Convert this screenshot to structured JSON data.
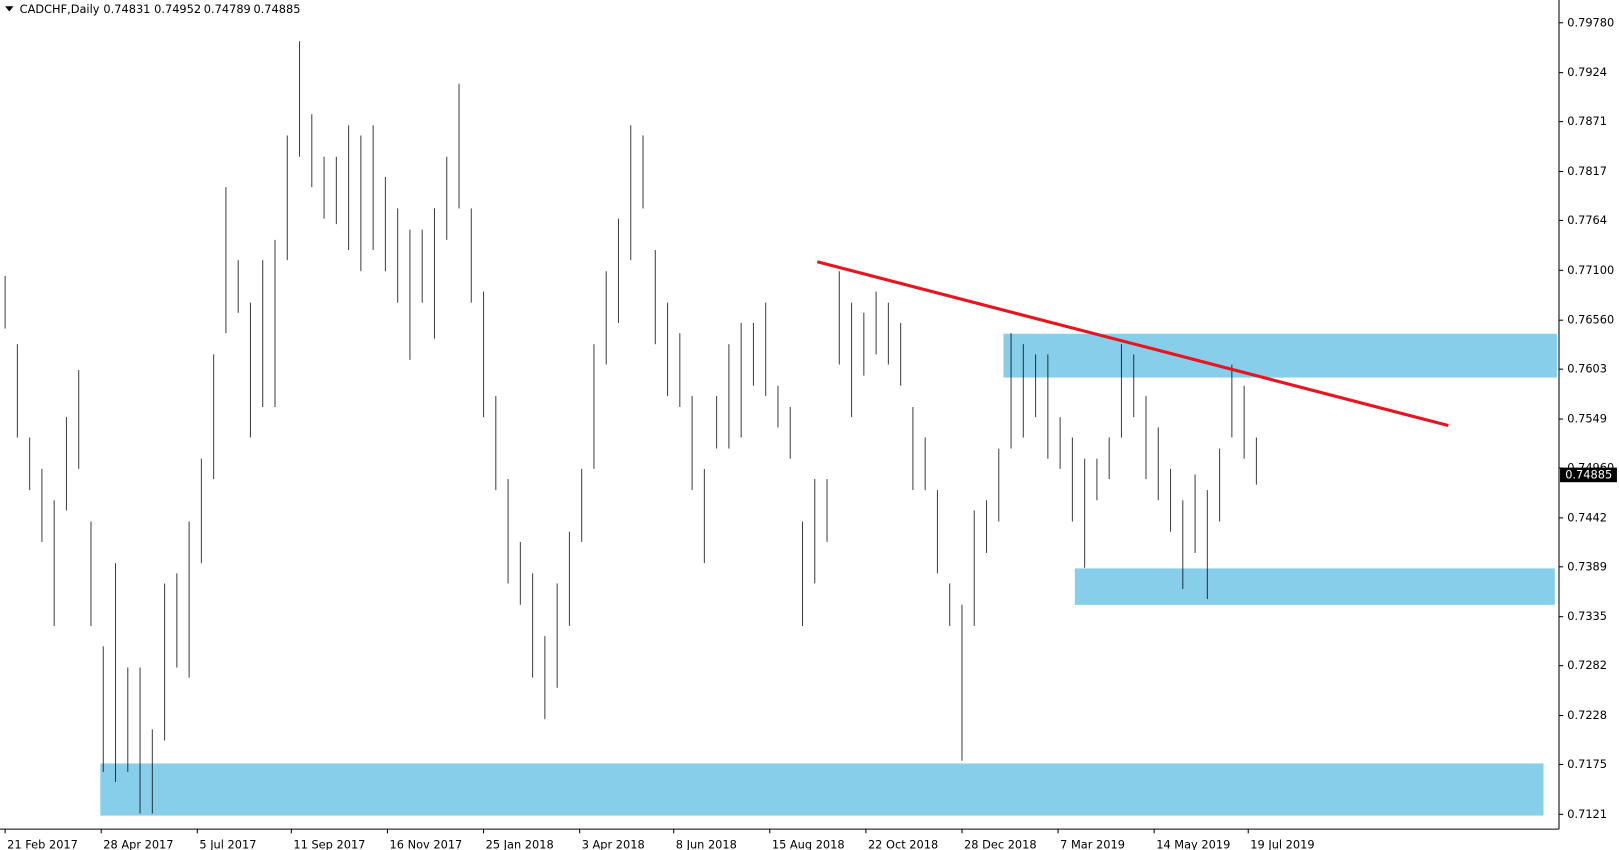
{
  "chart_data": {
    "type": "ohlc",
    "title": "CADCHF,Daily",
    "header_values": [
      0.74831,
      0.74952,
      0.74789,
      0.74885
    ],
    "last_price": 0.74885,
    "color": "#000000",
    "x": [
      0,
      6,
      12,
      18,
      24,
      30,
      36,
      42,
      48,
      54,
      60,
      66,
      72,
      78,
      84,
      90,
      96,
      102,
      108,
      114,
      120,
      126,
      132,
      138,
      144,
      150,
      156,
      162,
      168,
      174,
      180,
      186,
      192,
      198,
      204,
      210,
      216,
      222,
      228,
      234,
      240,
      246,
      252,
      258,
      264,
      270,
      276,
      282,
      288,
      294,
      300,
      306,
      312,
      318,
      324,
      330,
      336,
      342,
      348,
      354,
      360,
      366,
      372,
      378,
      384,
      390,
      396,
      402,
      408,
      414,
      420,
      426,
      432,
      438,
      444,
      450,
      456,
      462,
      468,
      474,
      480,
      486,
      492,
      498,
      504,
      510,
      516,
      522,
      528,
      534,
      540,
      546,
      552,
      558,
      564,
      570,
      576,
      582,
      588,
      594,
      600,
      606,
      612
    ],
    "high": [
      0.7704,
      0.763,
      0.7529,
      0.7495,
      0.7461,
      0.7551,
      0.7602,
      0.7438,
      0.7303,
      0.7393,
      0.728,
      0.728,
      0.7213,
      0.7371,
      0.7382,
      0.7438,
      0.7506,
      0.7619,
      0.78,
      0.7721,
      0.7675,
      0.7721,
      0.7743,
      0.7856,
      0.7958,
      0.7879,
      0.7833,
      0.7833,
      0.7867,
      0.7856,
      0.7867,
      0.7811,
      0.7777,
      0.7754,
      0.7754,
      0.7777,
      0.7833,
      0.7912,
      0.7777,
      0.7687,
      0.7574,
      0.7484,
      0.7416,
      0.7382,
      0.7314,
      0.7371,
      0.7427,
      0.7495,
      0.763,
      0.7709,
      0.7766,
      0.7867,
      0.7856,
      0.7732,
      0.7675,
      0.7642,
      0.7574,
      0.7495,
      0.7574,
      0.763,
      0.7653,
      0.7653,
      0.7675,
      0.7585,
      0.7562,
      0.7438,
      0.7484,
      0.7484,
      0.7709,
      0.7675,
      0.7664,
      0.7687,
      0.7675,
      0.7653,
      0.7562,
      0.7529,
      0.7472,
      0.7371,
      0.7348,
      0.745,
      0.7461,
      0.7517,
      0.7642,
      0.763,
      0.7619,
      0.7619,
      0.7551,
      0.7529,
      0.7506,
      0.7506,
      0.7529,
      0.763,
      0.7619,
      0.7574,
      0.754,
      0.7495,
      0.7461,
      0.7489,
      0.7472,
      0.7517,
      0.7608,
      0.7585,
      0.7529
    ],
    "low": [
      0.7647,
      0.7529,
      0.7472,
      0.7416,
      0.7325,
      0.745,
      0.7495,
      0.7325,
      0.7167,
      0.7156,
      0.7167,
      0.7122,
      0.7122,
      0.7201,
      0.728,
      0.7269,
      0.7393,
      0.7484,
      0.7642,
      0.7664,
      0.7529,
      0.7562,
      0.7562,
      0.7721,
      0.7833,
      0.78,
      0.7766,
      0.776,
      0.7732,
      0.7709,
      0.7732,
      0.7709,
      0.7675,
      0.7613,
      0.7675,
      0.7636,
      0.7743,
      0.7777,
      0.7675,
      0.7551,
      0.7472,
      0.7371,
      0.7348,
      0.7269,
      0.7224,
      0.7258,
      0.7325,
      0.7416,
      0.7495,
      0.7608,
      0.7653,
      0.7721,
      0.7777,
      0.763,
      0.7574,
      0.7562,
      0.7472,
      0.7393,
      0.7517,
      0.7517,
      0.7529,
      0.7585,
      0.7574,
      0.754,
      0.7506,
      0.7325,
      0.7371,
      0.7416,
      0.7608,
      0.7551,
      0.7596,
      0.7619,
      0.7608,
      0.7585,
      0.7472,
      0.7472,
      0.7382,
      0.7325,
      0.7179,
      0.7325,
      0.7404,
      0.7438,
      0.7517,
      0.7529,
      0.7551,
      0.7506,
      0.7495,
      0.7438,
      0.7388,
      0.7461,
      0.7484,
      0.7529,
      0.7551,
      0.7484,
      0.7461,
      0.7427,
      0.7365,
      0.7404,
      0.7354,
      0.7438,
      0.7529,
      0.7506,
      0.7478
    ],
    "xlim": [
      -2.5,
      760
    ],
    "xticks": [
      {
        "value": 0,
        "label": "21 Feb 2017"
      },
      {
        "value": 47,
        "label": "28 Apr 2017"
      },
      {
        "value": 94,
        "label": "5 Jul 2017"
      },
      {
        "value": 140,
        "label": "11 Sep 2017"
      },
      {
        "value": 187,
        "label": "16 Nov 2017"
      },
      {
        "value": 234,
        "label": "25 Jan 2018"
      },
      {
        "value": 281,
        "label": "3 Apr 2018"
      },
      {
        "value": 327,
        "label": "8 Jun 2018"
      },
      {
        "value": 374,
        "label": "15 Aug 2018"
      },
      {
        "value": 421,
        "label": "22 Oct 2018"
      },
      {
        "value": 468,
        "label": "28 Dec 2018"
      },
      {
        "value": 515,
        "label": "7 Mar 2019"
      },
      {
        "value": 562,
        "label": "14 May 2019"
      },
      {
        "value": 608,
        "label": "19 Jul 2019"
      }
    ],
    "ylim": [
      0.7105,
      0.7997
    ],
    "yticks": [
      {
        "value": 0.7978,
        "label": "0.79780"
      },
      0.7924,
      0.7871,
      0.7817,
      0.7764,
      {
        "value": 0.771,
        "label": "0.77100"
      },
      {
        "value": 0.7656,
        "label": "0.76560"
      },
      0.7603,
      0.7549,
      {
        "value": 0.7496,
        "label": "0.74960"
      },
      0.7442,
      0.7389,
      0.7335,
      0.7282,
      0.7228,
      0.7175,
      0.7121
    ]
  }
}
